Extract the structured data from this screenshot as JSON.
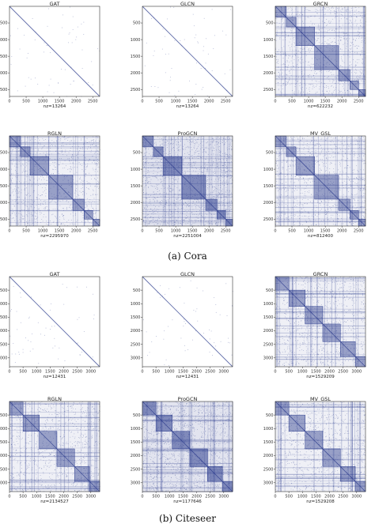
{
  "captions": {
    "a": "(a) Cora",
    "b": "(b) Citeseer"
  },
  "colors": {
    "dot": "#2f3f8f",
    "axis": "#333333",
    "background": "#ffffff"
  },
  "chart_data": [
    {
      "type": "heatmap",
      "dataset": "Cora",
      "title": "GAT",
      "xlabel": "nz=13264",
      "n": 2708,
      "nz": 13264,
      "xticks": [
        0,
        500,
        1000,
        1500,
        2000,
        2500
      ],
      "yticks": [
        500,
        1000,
        1500,
        2000,
        2500
      ],
      "pattern": "diagonal",
      "blocks": []
    },
    {
      "type": "heatmap",
      "dataset": "Cora",
      "title": "GLCN",
      "xlabel": "nz=13264",
      "n": 2708,
      "nz": 13264,
      "xticks": [
        0,
        500,
        1000,
        1500,
        2000,
        2500
      ],
      "yticks": [
        500,
        1000,
        1500,
        2000,
        2500
      ],
      "pattern": "diagonal",
      "blocks": []
    },
    {
      "type": "heatmap",
      "dataset": "Cora",
      "title": "GRCN",
      "xlabel": "nz=622232",
      "n": 2708,
      "nz": 622232,
      "xticks": [
        0,
        500,
        1000,
        1500,
        2000,
        2500
      ],
      "yticks": [
        500,
        1000,
        1500,
        2000,
        2500
      ],
      "pattern": "block",
      "blocks": [
        [
          0,
          330
        ],
        [
          330,
          620
        ],
        [
          620,
          1180
        ],
        [
          1180,
          1900
        ],
        [
          1900,
          2240
        ],
        [
          2240,
          2500
        ],
        [
          2500,
          2708
        ]
      ]
    },
    {
      "type": "heatmap",
      "dataset": "Cora",
      "title": "RGLN",
      "xlabel": "nz=2295970",
      "n": 2708,
      "nz": 2295970,
      "xticks": [
        0,
        500,
        1000,
        1500,
        2000,
        2500
      ],
      "yticks": [
        500,
        1000,
        1500,
        2000,
        2500
      ],
      "pattern": "block",
      "blocks": [
        [
          0,
          330
        ],
        [
          330,
          620
        ],
        [
          620,
          1180
        ],
        [
          1180,
          1900
        ],
        [
          1900,
          2240
        ],
        [
          2240,
          2500
        ],
        [
          2500,
          2708
        ]
      ]
    },
    {
      "type": "heatmap",
      "dataset": "Cora",
      "title": "ProGCN",
      "xlabel": "nz=2251004",
      "n": 2708,
      "nz": 2251004,
      "xticks": [
        0,
        500,
        1000,
        1500,
        2000,
        2500
      ],
      "yticks": [
        500,
        1000,
        1500,
        2000,
        2500
      ],
      "pattern": "dense",
      "blocks": [
        [
          0,
          330
        ],
        [
          330,
          620
        ],
        [
          620,
          1180
        ],
        [
          1180,
          1900
        ],
        [
          1900,
          2240
        ],
        [
          2240,
          2500
        ],
        [
          2500,
          2708
        ]
      ]
    },
    {
      "type": "heatmap",
      "dataset": "Cora",
      "title": "MV_GSL",
      "xlabel": "nz=812400",
      "n": 2708,
      "nz": 812400,
      "xticks": [
        0,
        500,
        1000,
        1500,
        2000,
        2500
      ],
      "yticks": [
        500,
        1000,
        1500,
        2000,
        2500
      ],
      "pattern": "block",
      "blocks": [
        [
          0,
          330
        ],
        [
          330,
          620
        ],
        [
          620,
          1180
        ],
        [
          1180,
          1900
        ],
        [
          1900,
          2240
        ],
        [
          2240,
          2500
        ],
        [
          2500,
          2708
        ]
      ]
    },
    {
      "type": "heatmap",
      "dataset": "Citeseer",
      "title": "GAT",
      "xlabel": "nz=12431",
      "n": 3327,
      "nz": 12431,
      "xticks": [
        0,
        500,
        1000,
        1500,
        2000,
        2500,
        3000
      ],
      "yticks": [
        500,
        1000,
        1500,
        2000,
        2500,
        3000
      ],
      "pattern": "diagonal",
      "blocks": []
    },
    {
      "type": "heatmap",
      "dataset": "Citeseer",
      "title": "GLCN",
      "xlabel": "nz=12431",
      "n": 3327,
      "nz": 12431,
      "xticks": [
        0,
        500,
        1000,
        1500,
        2000,
        2500,
        3000
      ],
      "yticks": [
        500,
        1000,
        1500,
        2000,
        2500,
        3000
      ],
      "pattern": "diagonal",
      "blocks": []
    },
    {
      "type": "heatmap",
      "dataset": "Citeseer",
      "title": "GRCN",
      "xlabel": "nz=1529209",
      "n": 3327,
      "nz": 1529209,
      "xticks": [
        0,
        500,
        1000,
        1500,
        2000,
        2500,
        3000
      ],
      "yticks": [
        500,
        1000,
        1500,
        2000,
        2500,
        3000
      ],
      "pattern": "block",
      "blocks": [
        [
          0,
          500
        ],
        [
          500,
          1100
        ],
        [
          1100,
          1750
        ],
        [
          1750,
          2400
        ],
        [
          2400,
          2950
        ],
        [
          2950,
          3327
        ]
      ]
    },
    {
      "type": "heatmap",
      "dataset": "Citeseer",
      "title": "RGLN",
      "xlabel": "nz=2134527",
      "n": 3327,
      "nz": 2134527,
      "xticks": [
        0,
        500,
        1000,
        1500,
        2000,
        2500,
        3000
      ],
      "yticks": [
        500,
        1000,
        1500,
        2000,
        2500,
        3000
      ],
      "pattern": "block",
      "blocks": [
        [
          0,
          500
        ],
        [
          500,
          1100
        ],
        [
          1100,
          1750
        ],
        [
          1750,
          2400
        ],
        [
          2400,
          2950
        ],
        [
          2950,
          3327
        ]
      ]
    },
    {
      "type": "heatmap",
      "dataset": "Citeseer",
      "title": "ProGCN",
      "xlabel": "nz=1177646",
      "n": 3327,
      "nz": 1177646,
      "xticks": [
        0,
        500,
        1000,
        1500,
        2000,
        2500,
        3000
      ],
      "yticks": [
        500,
        1000,
        1500,
        2000,
        2500,
        3000
      ],
      "pattern": "dense",
      "blocks": [
        [
          0,
          500
        ],
        [
          500,
          1100
        ],
        [
          1100,
          1750
        ],
        [
          1750,
          2400
        ],
        [
          2400,
          2950
        ],
        [
          2950,
          3327
        ]
      ]
    },
    {
      "type": "heatmap",
      "dataset": "Citeseer",
      "title": "MV_GSL",
      "xlabel": "nz=1529208",
      "n": 3327,
      "nz": 1529208,
      "xticks": [
        0,
        500,
        1000,
        1500,
        2000,
        2500,
        3000
      ],
      "yticks": [
        500,
        1000,
        1500,
        2000,
        2500,
        3000
      ],
      "pattern": "block",
      "blocks": [
        [
          0,
          500
        ],
        [
          500,
          1100
        ],
        [
          1100,
          1750
        ],
        [
          1750,
          2400
        ],
        [
          2400,
          2950
        ],
        [
          2950,
          3327
        ]
      ]
    }
  ]
}
